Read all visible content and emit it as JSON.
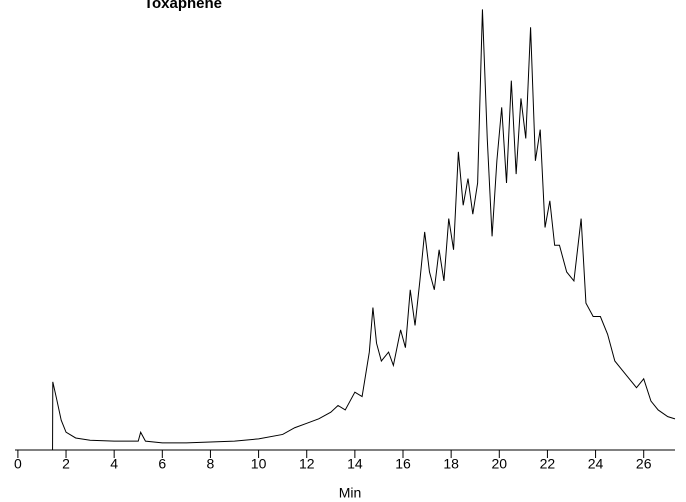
{
  "chart_data": {
    "type": "line",
    "title": "Toxaphene",
    "x_label": "Min",
    "xlim": [
      -0.12,
      27.3
    ],
    "ylim": [
      0,
      100
    ],
    "xticks": [
      0,
      2,
      4,
      6,
      8,
      10,
      12,
      14,
      16,
      18,
      20,
      22,
      24,
      26
    ],
    "series": [
      {
        "color": "#000000",
        "x": [
          0,
          1.44,
          1.45,
          1.6,
          1.8,
          2.0,
          2.4,
          3,
          4,
          5,
          5.1,
          5.3,
          6,
          7,
          8,
          9,
          10,
          11,
          11.5,
          12,
          12.5,
          13,
          13.3,
          13.6,
          14,
          14.3,
          14.6,
          14.75,
          14.9,
          15.1,
          15.4,
          15.6,
          15.9,
          16.1,
          16.3,
          16.5,
          16.7,
          16.9,
          17.1,
          17.3,
          17.5,
          17.7,
          17.9,
          18.1,
          18.3,
          18.5,
          18.7,
          18.9,
          19.1,
          19.3,
          19.5,
          19.7,
          19.9,
          20.1,
          20.3,
          20.5,
          20.7,
          20.9,
          21.1,
          21.3,
          21.5,
          21.7,
          21.9,
          22.1,
          22.3,
          22.5,
          22.8,
          23.1,
          23.4,
          23.6,
          23.9,
          24.2,
          24.5,
          24.8,
          25.1,
          25.4,
          25.7,
          26,
          26.3,
          26.6,
          27,
          27.3
        ],
        "values": [
          0,
          0,
          15.3,
          11.7,
          6.7,
          4,
          2.7,
          2.2,
          2.0,
          2.0,
          4,
          2,
          1.6,
          1.6,
          1.8,
          2,
          2.5,
          3.5,
          5,
          6,
          7,
          8.5,
          10,
          9,
          13,
          12,
          22,
          32,
          24,
          20,
          22,
          19,
          27,
          23,
          36,
          28,
          38,
          49,
          40,
          36,
          45,
          38,
          52,
          45,
          67,
          55,
          61,
          53,
          60,
          99,
          70,
          48,
          65,
          77,
          60,
          83,
          62,
          79,
          70,
          95,
          65,
          72,
          50,
          56,
          46,
          46,
          40,
          38,
          52,
          33,
          30,
          30,
          26,
          20,
          18,
          16,
          14,
          16,
          11,
          9,
          7.5,
          7
        ]
      }
    ]
  }
}
